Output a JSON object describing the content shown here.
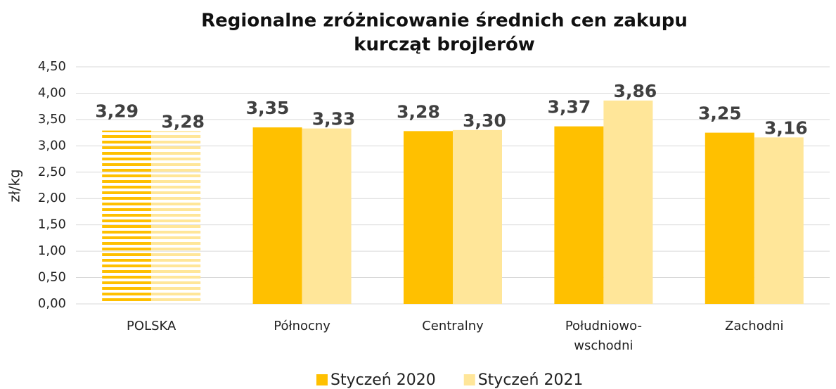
{
  "chart_data": {
    "type": "bar",
    "title": [
      "Regionalne zróżnicowanie średnich cen zakupu",
      "kurcząt brojlerów"
    ],
    "y_label": "zł/kg",
    "categories": [
      "POLSKA",
      "Północny",
      "Centralny",
      "Południowo-\nwschodni",
      "Zachodni"
    ],
    "hatch": [
      true,
      false,
      false,
      false,
      false
    ],
    "series": [
      {
        "name": "Styczeń 2020",
        "color": "#ffc000",
        "values": [
          3.29,
          3.35,
          3.28,
          3.37,
          3.25
        ],
        "value_labels": [
          "3,29",
          "3,35",
          "3,28",
          "3,37",
          "3,25"
        ]
      },
      {
        "name": "Styczeń 2021",
        "color": "#ffe699",
        "values": [
          3.28,
          3.33,
          3.3,
          3.86,
          3.16
        ],
        "value_labels": [
          "3,28",
          "3,33",
          "3,30",
          "3,86",
          "3,16"
        ]
      }
    ],
    "ylim": [
      0,
      4.5
    ],
    "yticks": [
      {
        "value": 0,
        "label": "0,00"
      },
      {
        "value": 0.5,
        "label": "0,50"
      },
      {
        "value": 1,
        "label": "1,00"
      },
      {
        "value": 1.5,
        "label": "1,50"
      },
      {
        "value": 2,
        "label": "2,00"
      },
      {
        "value": 2.5,
        "label": "2,50"
      },
      {
        "value": 3,
        "label": "3,00"
      },
      {
        "value": 3.5,
        "label": "3,50"
      },
      {
        "value": 4,
        "label": "4,00"
      },
      {
        "value": 4.5,
        "label": "4,50"
      }
    ],
    "grid": true,
    "legend": "bottom"
  }
}
